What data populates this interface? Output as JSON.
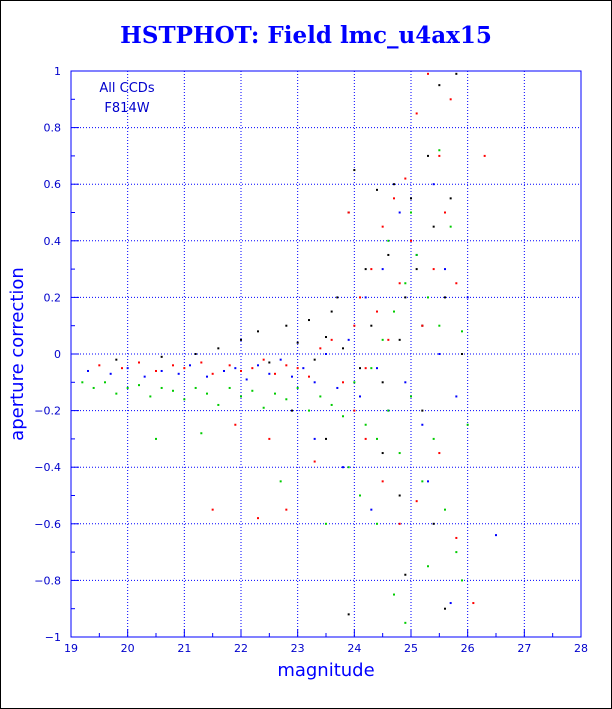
{
  "chart_data": {
    "type": "scatter",
    "title": "HSTPHOT: Field lmc_u4ax15",
    "xlabel": "magnitude",
    "ylabel": "aperture correction",
    "xlim": [
      19,
      28
    ],
    "ylim": [
      -1,
      1
    ],
    "x_ticks": [
      "19",
      "20",
      "21",
      "22",
      "23",
      "24",
      "25",
      "26",
      "27",
      "28"
    ],
    "y_ticks": [
      "1",
      "0.8",
      "0.6",
      "0.4",
      "0.2",
      "0",
      "−0.2",
      "−0.4",
      "−0.6",
      "−0.8",
      "−1"
    ],
    "grid": true,
    "annotations": [
      "All CCDs",
      "F814W"
    ],
    "series": [
      {
        "color": "#000000",
        "points": [
          [
            19.8,
            -0.02
          ],
          [
            20.6,
            -0.01
          ],
          [
            21.2,
            0.0
          ],
          [
            21.6,
            0.02
          ],
          [
            22.0,
            0.05
          ],
          [
            22.3,
            0.08
          ],
          [
            22.5,
            -0.03
          ],
          [
            22.8,
            0.1
          ],
          [
            23.0,
            0.04
          ],
          [
            23.2,
            0.12
          ],
          [
            23.3,
            -0.02
          ],
          [
            23.5,
            0.06
          ],
          [
            23.6,
            0.15
          ],
          [
            23.7,
            0.2
          ],
          [
            23.8,
            0.02
          ],
          [
            23.9,
            0.5
          ],
          [
            24.0,
            0.65
          ],
          [
            24.1,
            -0.05
          ],
          [
            24.2,
            0.3
          ],
          [
            24.3,
            0.1
          ],
          [
            24.4,
            0.58
          ],
          [
            24.5,
            -0.1
          ],
          [
            24.6,
            0.35
          ],
          [
            24.7,
            0.6
          ],
          [
            24.8,
            0.05
          ],
          [
            24.9,
            0.2
          ],
          [
            25.0,
            0.55
          ],
          [
            25.1,
            0.3
          ],
          [
            25.2,
            0.1
          ],
          [
            25.3,
            0.7
          ],
          [
            25.4,
            0.45
          ],
          [
            25.5,
            0.95
          ],
          [
            25.6,
            0.2
          ],
          [
            25.7,
            0.55
          ],
          [
            25.8,
            0.99
          ],
          [
            25.9,
            0.0
          ],
          [
            24.5,
            -0.35
          ],
          [
            24.8,
            -0.5
          ],
          [
            25.2,
            -0.2
          ],
          [
            25.6,
            -0.9
          ],
          [
            23.9,
            -0.92
          ],
          [
            24.9,
            -0.78
          ],
          [
            25.4,
            -0.6
          ],
          [
            23.5,
            -0.3
          ],
          [
            22.9,
            -0.2
          ]
        ]
      },
      {
        "color": "#ff0000",
        "points": [
          [
            19.5,
            -0.04
          ],
          [
            19.9,
            -0.05
          ],
          [
            20.2,
            -0.03
          ],
          [
            20.5,
            -0.06
          ],
          [
            20.8,
            -0.04
          ],
          [
            21.0,
            -0.05
          ],
          [
            21.3,
            -0.03
          ],
          [
            21.5,
            -0.07
          ],
          [
            21.8,
            -0.04
          ],
          [
            22.0,
            -0.06
          ],
          [
            22.2,
            -0.05
          ],
          [
            22.4,
            -0.02
          ],
          [
            22.6,
            -0.07
          ],
          [
            22.8,
            -0.04
          ],
          [
            23.0,
            -0.05
          ],
          [
            23.2,
            -0.08
          ],
          [
            23.4,
            0.02
          ],
          [
            23.6,
            0.05
          ],
          [
            23.8,
            -0.1
          ],
          [
            24.0,
            0.1
          ],
          [
            24.1,
            0.2
          ],
          [
            24.2,
            -0.05
          ],
          [
            24.3,
            0.3
          ],
          [
            24.4,
            0.15
          ],
          [
            24.5,
            0.45
          ],
          [
            24.6,
            0.05
          ],
          [
            24.7,
            0.55
          ],
          [
            24.8,
            0.25
          ],
          [
            24.9,
            0.62
          ],
          [
            25.0,
            0.4
          ],
          [
            25.1,
            0.85
          ],
          [
            25.2,
            0.1
          ],
          [
            25.3,
            0.99
          ],
          [
            25.4,
            0.3
          ],
          [
            25.5,
            0.7
          ],
          [
            25.6,
            0.5
          ],
          [
            25.7,
            0.9
          ],
          [
            25.8,
            0.25
          ],
          [
            26.3,
            0.7
          ],
          [
            23.9,
            0.5
          ],
          [
            22.8,
            -0.55
          ],
          [
            22.3,
            -0.58
          ],
          [
            21.5,
            -0.55
          ],
          [
            23.3,
            -0.38
          ],
          [
            24.2,
            -0.3
          ],
          [
            24.5,
            -0.45
          ],
          [
            24.8,
            -0.6
          ],
          [
            25.1,
            -0.52
          ],
          [
            25.5,
            -0.35
          ],
          [
            25.8,
            -0.65
          ],
          [
            26.1,
            -0.88
          ],
          [
            24.0,
            -0.2
          ],
          [
            22.5,
            -0.3
          ],
          [
            21.9,
            -0.25
          ]
        ]
      },
      {
        "color": "#0000ff",
        "points": [
          [
            19.3,
            -0.06
          ],
          [
            19.7,
            -0.07
          ],
          [
            20.0,
            -0.05
          ],
          [
            20.3,
            -0.08
          ],
          [
            20.6,
            -0.06
          ],
          [
            20.9,
            -0.07
          ],
          [
            21.1,
            -0.04
          ],
          [
            21.4,
            -0.08
          ],
          [
            21.7,
            -0.06
          ],
          [
            21.9,
            -0.05
          ],
          [
            22.1,
            -0.09
          ],
          [
            22.3,
            -0.04
          ],
          [
            22.5,
            -0.07
          ],
          [
            22.7,
            -0.02
          ],
          [
            22.9,
            -0.08
          ],
          [
            23.1,
            -0.05
          ],
          [
            23.3,
            -0.1
          ],
          [
            23.5,
            0.0
          ],
          [
            23.7,
            -0.12
          ],
          [
            23.9,
            0.05
          ],
          [
            24.1,
            -0.15
          ],
          [
            24.2,
            0.2
          ],
          [
            24.4,
            -0.05
          ],
          [
            24.5,
            0.3
          ],
          [
            24.6,
            -0.2
          ],
          [
            24.8,
            0.5
          ],
          [
            24.9,
            -0.1
          ],
          [
            25.1,
            0.35
          ],
          [
            25.2,
            -0.25
          ],
          [
            25.4,
            0.6
          ],
          [
            25.5,
            0.0
          ],
          [
            25.6,
            0.3
          ],
          [
            25.8,
            -0.15
          ],
          [
            26.5,
            -0.64
          ],
          [
            25.7,
            -0.88
          ],
          [
            26.0,
            0.2
          ],
          [
            23.3,
            -0.3
          ],
          [
            23.8,
            -0.4
          ],
          [
            24.3,
            -0.55
          ],
          [
            25.3,
            -0.45
          ]
        ]
      },
      {
        "color": "#00cc00",
        "points": [
          [
            19.2,
            -0.1
          ],
          [
            19.4,
            -0.12
          ],
          [
            19.6,
            -0.1
          ],
          [
            19.8,
            -0.14
          ],
          [
            20.0,
            -0.12
          ],
          [
            20.2,
            -0.11
          ],
          [
            20.4,
            -0.15
          ],
          [
            20.6,
            -0.12
          ],
          [
            20.8,
            -0.13
          ],
          [
            21.0,
            -0.16
          ],
          [
            21.2,
            -0.12
          ],
          [
            21.4,
            -0.14
          ],
          [
            21.6,
            -0.18
          ],
          [
            21.8,
            -0.12
          ],
          [
            22.0,
            -0.15
          ],
          [
            22.2,
            -0.13
          ],
          [
            22.4,
            -0.19
          ],
          [
            22.6,
            -0.14
          ],
          [
            22.8,
            -0.16
          ],
          [
            23.0,
            -0.12
          ],
          [
            23.2,
            -0.2
          ],
          [
            23.4,
            -0.15
          ],
          [
            23.6,
            -0.18
          ],
          [
            23.8,
            -0.22
          ],
          [
            24.0,
            -0.1
          ],
          [
            24.2,
            -0.25
          ],
          [
            24.3,
            -0.05
          ],
          [
            24.4,
            -0.3
          ],
          [
            24.5,
            0.05
          ],
          [
            24.6,
            -0.2
          ],
          [
            24.7,
            0.15
          ],
          [
            24.8,
            -0.35
          ],
          [
            24.9,
            0.25
          ],
          [
            25.0,
            -0.15
          ],
          [
            25.1,
            0.35
          ],
          [
            25.2,
            -0.45
          ],
          [
            25.3,
            0.2
          ],
          [
            25.4,
            -0.3
          ],
          [
            25.5,
            0.1
          ],
          [
            25.6,
            -0.55
          ],
          [
            25.7,
            0.45
          ],
          [
            25.8,
            -0.7
          ],
          [
            25.9,
            0.08
          ],
          [
            26.0,
            -0.25
          ],
          [
            25.5,
            0.72
          ],
          [
            25.0,
            0.5
          ],
          [
            24.6,
            0.4
          ],
          [
            24.4,
            -0.6
          ],
          [
            24.7,
            -0.85
          ],
          [
            25.3,
            -0.75
          ],
          [
            24.1,
            -0.5
          ],
          [
            23.9,
            -0.4
          ],
          [
            20.5,
            -0.3
          ],
          [
            21.3,
            -0.28
          ],
          [
            22.7,
            -0.45
          ],
          [
            23.5,
            -0.6
          ],
          [
            24.9,
            -0.95
          ],
          [
            25.9,
            -0.8
          ]
        ]
      }
    ]
  }
}
